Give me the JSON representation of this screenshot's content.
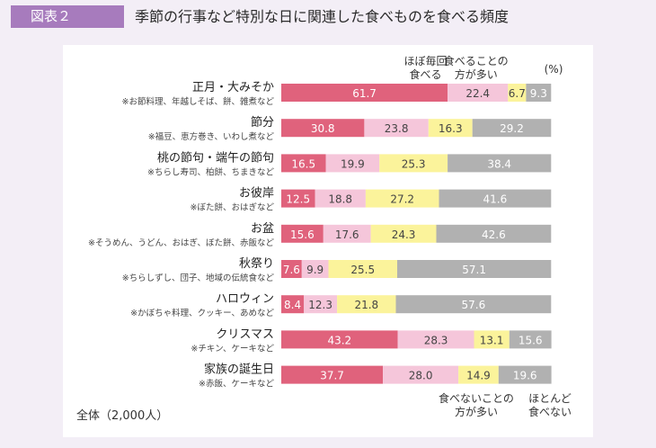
{
  "figure": {
    "label": "図表２",
    "title": "季節の行事など特別な日に関連した食べものを食べる頻度"
  },
  "chart_data": {
    "type": "bar",
    "orientation": "horizontal-stacked-100",
    "unit_label": "(%)",
    "base_note": "全体（2,000人）",
    "series": [
      {
        "name": "ほぼ毎回食べる",
        "label_lines": [
          "ほぼ毎回",
          "食べる"
        ],
        "color": "#e0627c",
        "text_color": "#ffffff"
      },
      {
        "name": "食べることの方が多い",
        "label_lines": [
          "食べることの",
          "方が多い"
        ],
        "color": "#f5c6da",
        "text_color": "#444444"
      },
      {
        "name": "食べないことの方が多い",
        "label_lines": [
          "食べないことの",
          "方が多い"
        ],
        "color": "#fbf39b",
        "text_color": "#444444"
      },
      {
        "name": "ほとんど食べない",
        "label_lines": [
          "ほとんど",
          "食べない"
        ],
        "color": "#b1b1b1",
        "text_color": "#ffffff"
      }
    ],
    "categories": [
      {
        "name": "正月・大みそか",
        "note": "※お節料理、年越しそば、餅、雑煮など",
        "values": [
          61.7,
          22.4,
          6.7,
          9.3
        ]
      },
      {
        "name": "節分",
        "note": "※福豆、恵方巻き、いわし煮など",
        "values": [
          30.8,
          23.8,
          16.3,
          29.2
        ]
      },
      {
        "name": "桃の節句・端午の節句",
        "note": "※ちらし寿司、柏餅、ちまきなど",
        "values": [
          16.5,
          19.9,
          25.3,
          38.4
        ]
      },
      {
        "name": "お彼岸",
        "note": "※ぼた餅、おはぎなど",
        "values": [
          12.5,
          18.8,
          27.2,
          41.6
        ]
      },
      {
        "name": "お盆",
        "note": "※そうめん、うどん、おはぎ、ぼた餅、赤飯など",
        "values": [
          15.6,
          17.6,
          24.3,
          42.6
        ]
      },
      {
        "name": "秋祭り",
        "note": "※ちらしずし、団子、地域の伝統食など",
        "values": [
          7.6,
          9.9,
          25.5,
          57.1
        ]
      },
      {
        "name": "ハロウィン",
        "note": "※かぼちゃ料理、クッキー、あめなど",
        "values": [
          8.4,
          12.3,
          21.8,
          57.6
        ]
      },
      {
        "name": "クリスマス",
        "note": "※チキン、ケーキなど",
        "values": [
          43.2,
          28.3,
          13.1,
          15.6
        ]
      },
      {
        "name": "家族の誕生日",
        "note": "※赤飯、ケーキなど",
        "values": [
          37.7,
          28.0,
          14.9,
          19.6
        ]
      }
    ]
  }
}
